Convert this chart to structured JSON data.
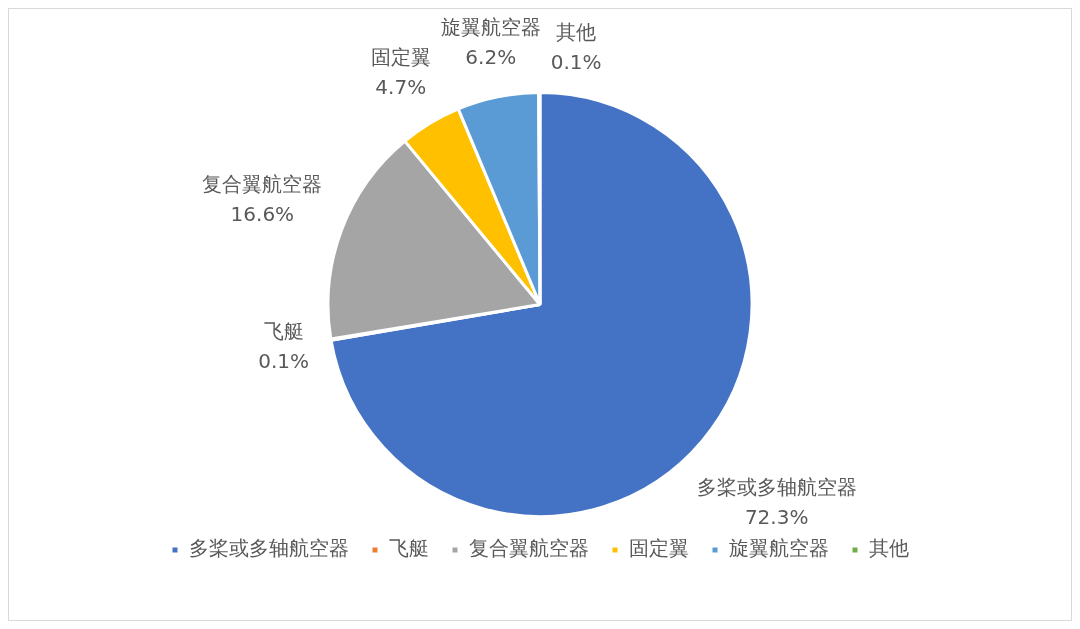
{
  "chart_data": {
    "type": "pie",
    "categories": [
      "多桨或多轴航空器",
      "飞艇",
      "复合翼航空器",
      "固定翼",
      "旋翼航空器",
      "其他"
    ],
    "values": [
      72.3,
      0.1,
      16.6,
      4.7,
      6.2,
      0.1
    ],
    "value_labels": [
      "72.3%",
      "0.1%",
      "16.6%",
      "4.7%",
      "6.2%",
      "0.1%"
    ],
    "colors": [
      "#4472c4",
      "#ed7d31",
      "#a5a5a5",
      "#ffc000",
      "#5b9bd5",
      "#70ad47"
    ],
    "legend": "bottom"
  }
}
